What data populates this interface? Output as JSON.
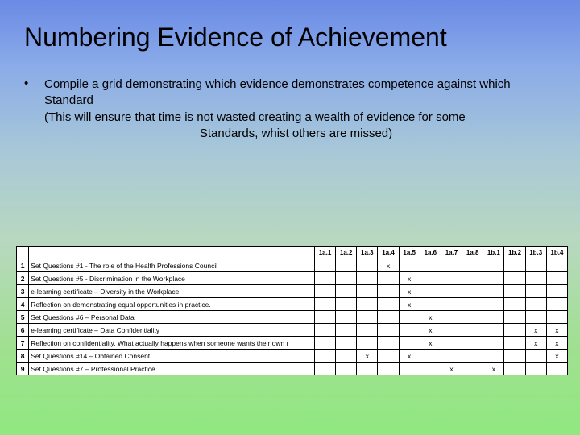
{
  "title": "Numbering Evidence of Achievement",
  "bullet": "Compile a grid demonstrating which evidence demonstrates competence against which Standard",
  "note_line1": "(This will ensure that time is not wasted creating a wealth of evidence for some",
  "note_line2": "Standards, whist others are missed)",
  "table": {
    "headers": [
      "1a.1",
      "1a.2",
      "1a.3",
      "1a.4",
      "1a.5",
      "1a.6",
      "1a.7",
      "1a.8",
      "1b.1",
      "1b.2",
      "1b.3",
      "1b.4"
    ],
    "rows": [
      {
        "num": "1",
        "desc": "Set Questions #1 - The role of the Health Professions Council",
        "marks": [
          "",
          "",
          "",
          "x",
          "",
          "",
          "",
          "",
          "",
          "",
          "",
          ""
        ]
      },
      {
        "num": "2",
        "desc": "Set Questions #5 - Discrimination in the Workplace",
        "marks": [
          "",
          "",
          "",
          "",
          "x",
          "",
          "",
          "",
          "",
          "",
          "",
          ""
        ]
      },
      {
        "num": "3",
        "desc": "e-learning certificate – Diversity in the Workplace",
        "marks": [
          "",
          "",
          "",
          "",
          "x",
          "",
          "",
          "",
          "",
          "",
          "",
          ""
        ]
      },
      {
        "num": "4",
        "desc": "Reflection on demonstrating equal opportunities in practice.",
        "marks": [
          "",
          "",
          "",
          "",
          "x",
          "",
          "",
          "",
          "",
          "",
          "",
          ""
        ]
      },
      {
        "num": "5",
        "desc": "Set Questions #6 – Personal Data",
        "marks": [
          "",
          "",
          "",
          "",
          "",
          "x",
          "",
          "",
          "",
          "",
          "",
          ""
        ]
      },
      {
        "num": "6",
        "desc": "e-learning certificate – Data Confidentiality",
        "marks": [
          "",
          "",
          "",
          "",
          "",
          "x",
          "",
          "",
          "",
          "",
          "x",
          "x"
        ]
      },
      {
        "num": "7",
        "desc": "Reflection on confidentiality. What actually happens when someone wants their own r",
        "marks": [
          "",
          "",
          "",
          "",
          "",
          "x",
          "",
          "",
          "",
          "",
          "x",
          "x"
        ]
      },
      {
        "num": "8",
        "desc": "Set Questions #14 – Obtained Consent",
        "marks": [
          "",
          "",
          "x",
          "",
          "x",
          "",
          "",
          "",
          "",
          "",
          "",
          "x"
        ]
      },
      {
        "num": "9",
        "desc": "Set Questions #7 – Professional Practice",
        "marks": [
          "",
          "",
          "",
          "",
          "",
          "",
          "x",
          "",
          "x",
          "",
          "",
          ""
        ]
      }
    ]
  }
}
